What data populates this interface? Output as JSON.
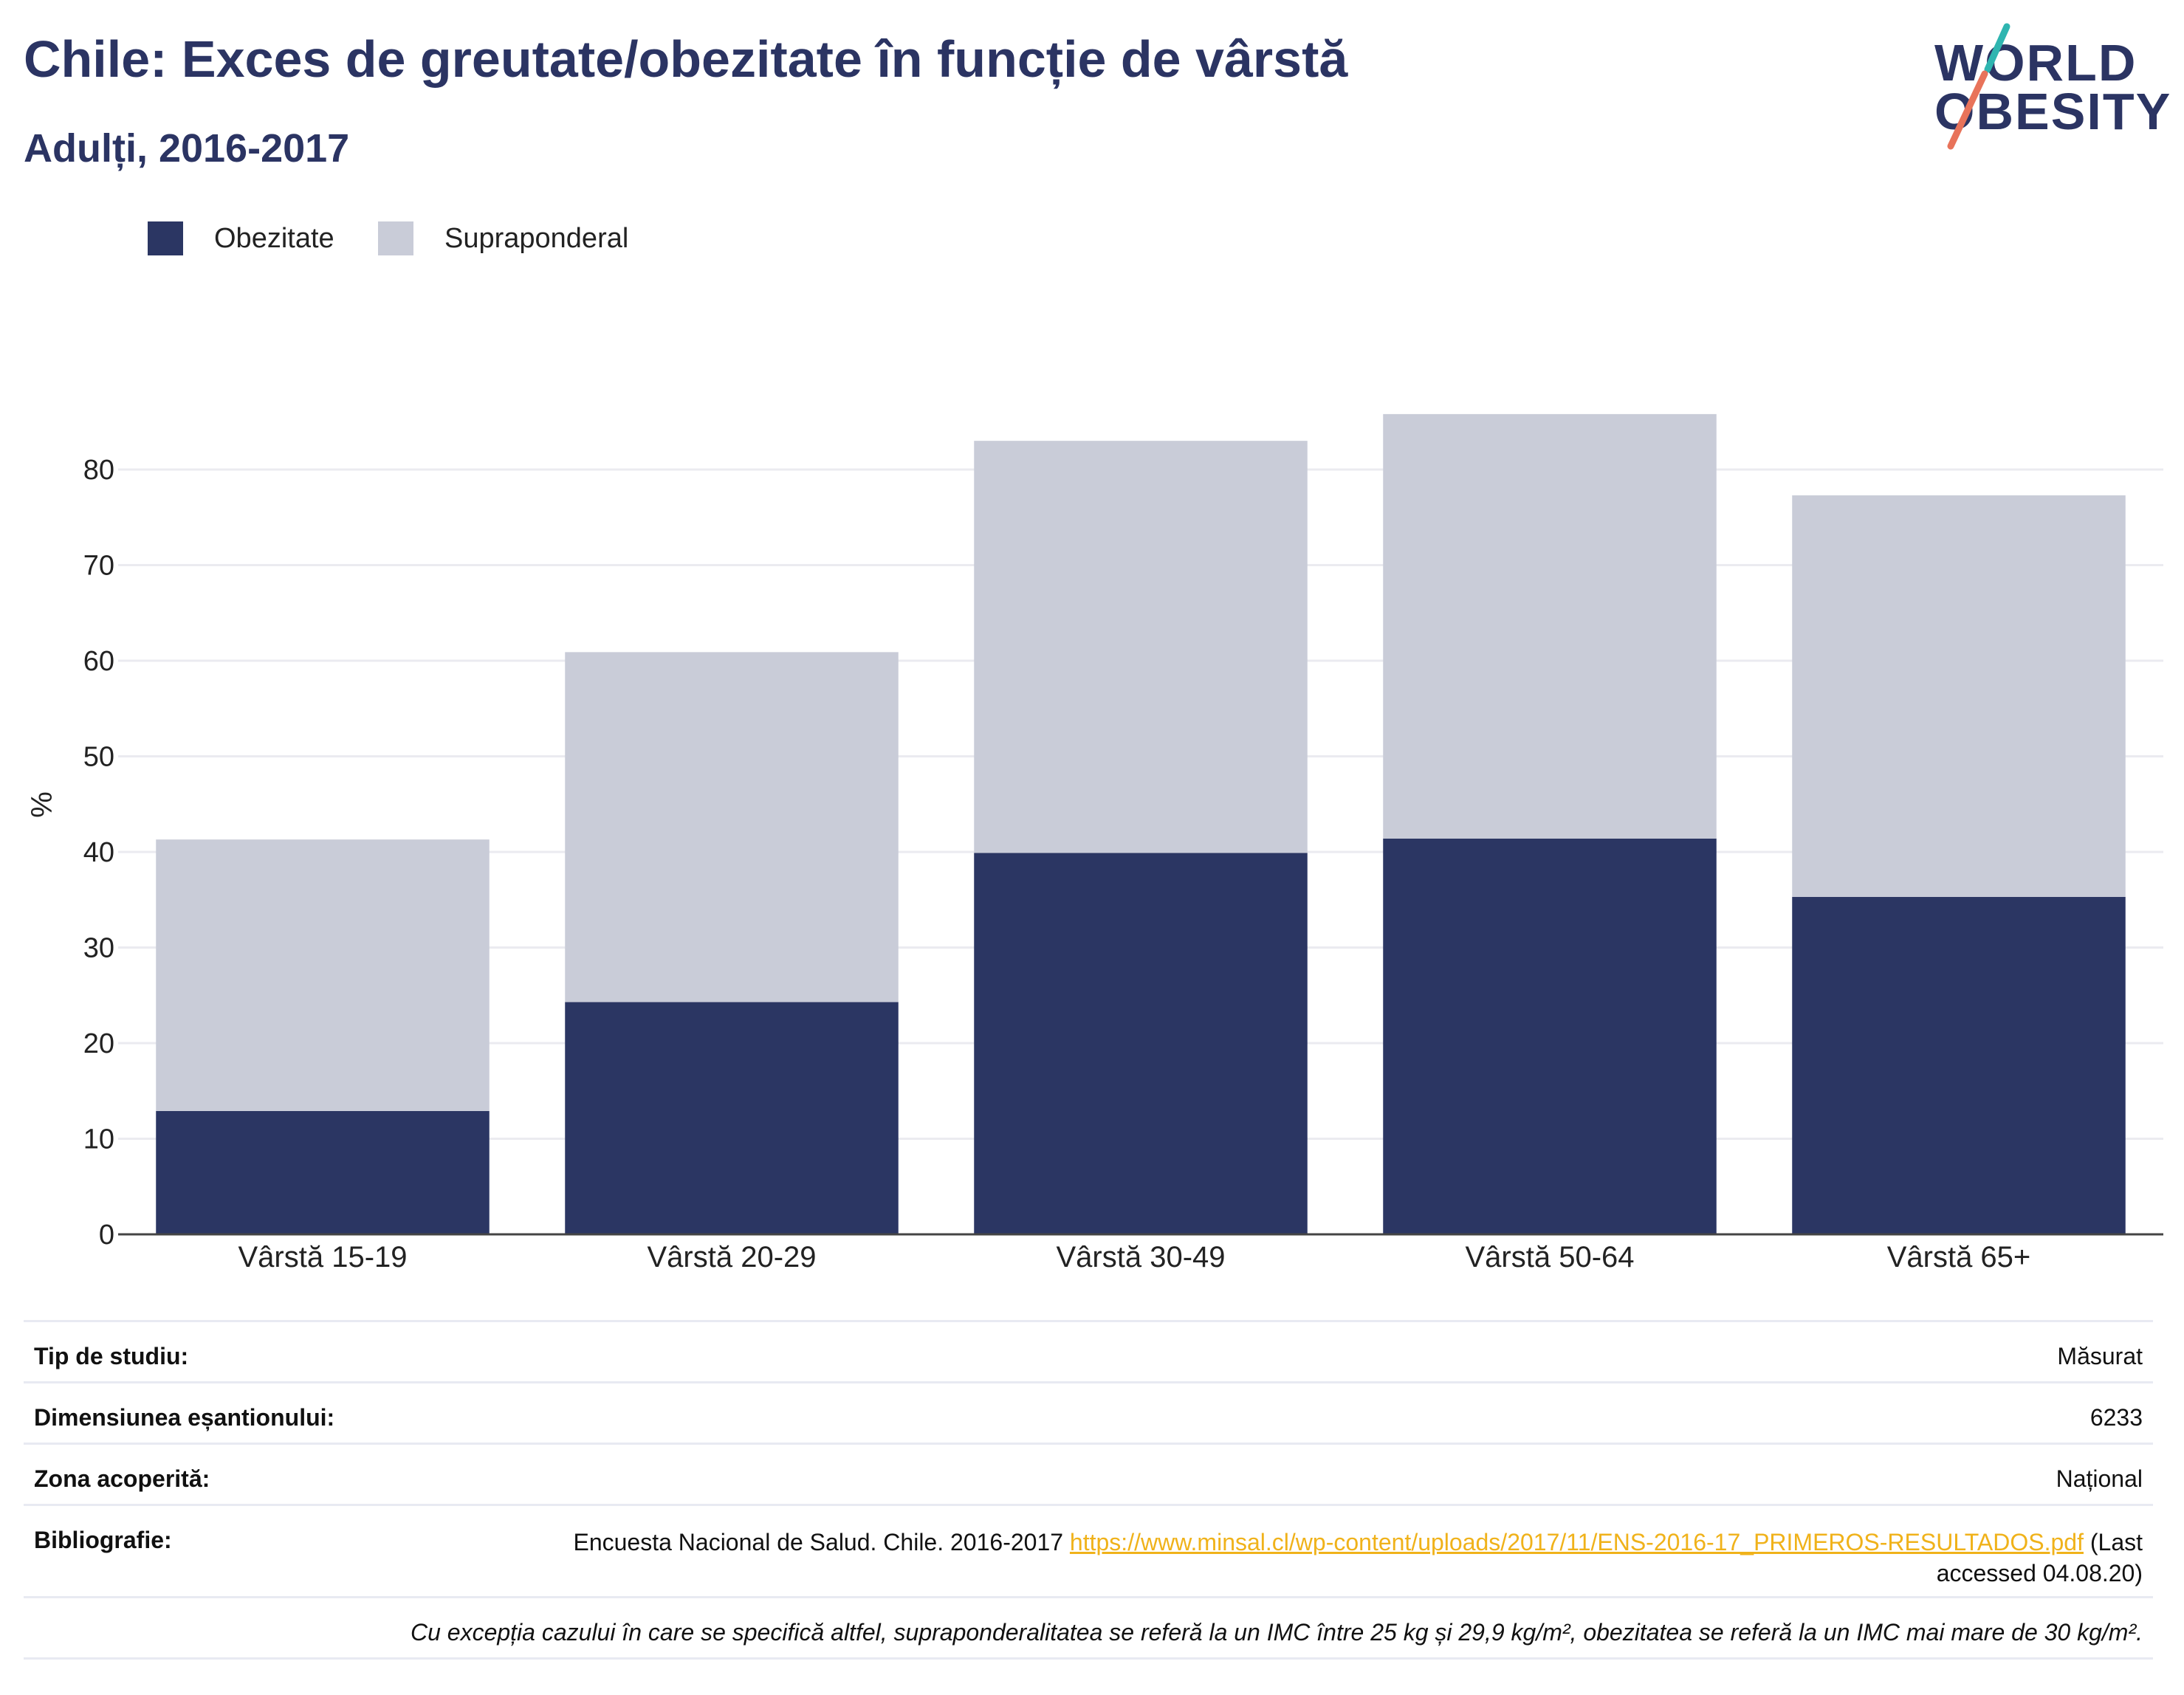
{
  "title": "Chile: Exces de greutate/obezitate în funcție de vârstă",
  "subtitle": "Adulți, 2016-2017",
  "logo": {
    "line1": "WORLD",
    "line2": "OBESITY"
  },
  "legend": [
    {
      "label": "Obezitate",
      "color": "#2b3663"
    },
    {
      "label": "Supraponderal",
      "color": "#c9ccd8"
    }
  ],
  "chart_data": {
    "type": "bar",
    "stacked": true,
    "categories": [
      "Vârstă 15-19",
      "Vârstă 20-29",
      "Vârstă 30-49",
      "Vârstă 50-64",
      "Vârstă 65+"
    ],
    "series": [
      {
        "name": "Obezitate",
        "values": [
          12.9,
          24.3,
          39.9,
          41.4,
          35.3
        ],
        "color": "#2b3663"
      },
      {
        "name": "Supraponderal",
        "values": [
          28.4,
          36.6,
          43.1,
          44.4,
          42.0
        ],
        "color": "#c9ccd8"
      }
    ],
    "ylabel": "%",
    "ylim": [
      0,
      90
    ],
    "yticks": [
      0,
      10,
      20,
      30,
      40,
      50,
      60,
      70,
      80
    ],
    "grid": true,
    "legend_position": "top-left"
  },
  "info": {
    "study_type": {
      "label": "Tip de studiu:",
      "value": "Măsurat"
    },
    "sample_size": {
      "label": "Dimensiunea eșantionului:",
      "value": "6233"
    },
    "area": {
      "label": "Zona acoperită:",
      "value": "Național"
    },
    "bibliography": {
      "label": "Bibliografie:",
      "text": "Encuesta Nacional de Salud. Chile. 2016-2017",
      "link": "https://www.minsal.cl/wp-content/uploads/2017/11/ENS-2016-17_PRIMEROS-RESULTADOS.pdf",
      "accessed": "(Last accessed 04.08.20)"
    },
    "note": "Cu excepția cazului în care se specifică altfel, supraponderalitatea se referă la un IMC între 25 kg și 29,9 kg/m², obezitatea se referă la un IMC mai mare de 30 kg/m²."
  }
}
